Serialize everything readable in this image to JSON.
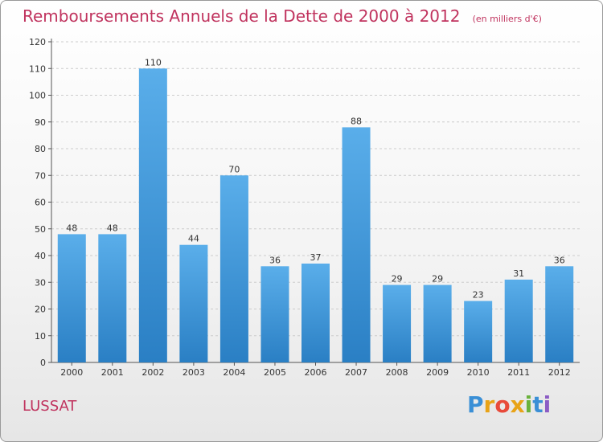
{
  "title": "Remboursements Annuels de la Dette de 2000 à 2012",
  "unit_note": "(en milliers d'€)",
  "commune": "LUSSAT",
  "logo": {
    "letters": [
      "P",
      "r",
      "o",
      "x",
      "i",
      "t",
      "i"
    ],
    "colors": [
      "#3a8fd6",
      "#e8a317",
      "#e84a3a",
      "#e8a317",
      "#6ab23c",
      "#3a8fd6",
      "#8b5cc4"
    ]
  },
  "chart_data": {
    "type": "bar",
    "categories": [
      "2000",
      "2001",
      "2002",
      "2003",
      "2004",
      "2005",
      "2006",
      "2007",
      "2008",
      "2009",
      "2010",
      "2011",
      "2012"
    ],
    "values": [
      48,
      48,
      110,
      44,
      70,
      36,
      37,
      88,
      29,
      29,
      23,
      31,
      36
    ],
    "ylim": [
      0,
      120
    ],
    "yticks": [
      0,
      10,
      20,
      30,
      40,
      50,
      60,
      70,
      80,
      90,
      100,
      110,
      120
    ],
    "grid": true,
    "bar_color_top": "#5aaeea",
    "bar_color_bottom": "#2a7fc4",
    "grid_color": "#cccccc",
    "title_color": "#c0335e"
  }
}
